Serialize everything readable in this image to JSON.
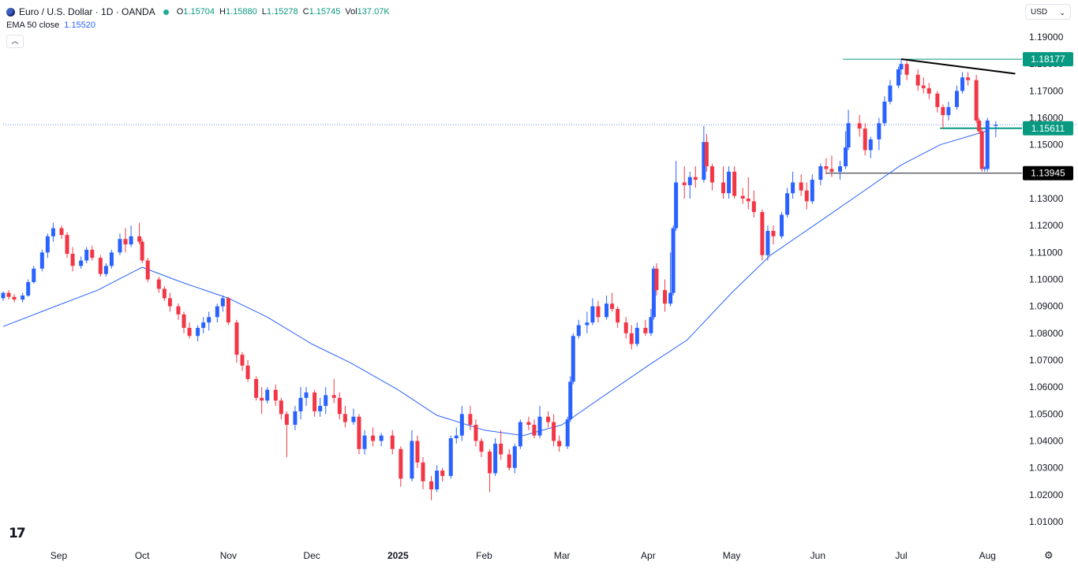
{
  "header": {
    "symbol": "Euro / U.S. Dollar · 1D · OANDA",
    "o_label": "O",
    "o_value": "1.15704",
    "h_label": "H",
    "h_value": "1.15880",
    "l_label": "L",
    "l_value": "1.15278",
    "c_label": "C",
    "c_value": "1.15745",
    "vol_label": "Vol",
    "vol_value": "137.07K",
    "ema_label": "EMA 50 close",
    "ema_value": "1.15520",
    "currency": "USD"
  },
  "colors": {
    "up": "#2962ff",
    "down": "#f23645",
    "ema": "#2962ff",
    "level_green": "#089981",
    "level_black": "#131722",
    "grid_text": "#131722"
  },
  "icons": {
    "symbol_flag": "eur-usd-flag-icon",
    "status": "market-open-dot-icon",
    "collapse": "chevron-up-icon",
    "dropdown": "chevron-down-icon",
    "logo": "tradingview-logo-icon",
    "settings": "gear-icon"
  },
  "chart_data": {
    "type": "candlestick",
    "title": "Euro / U.S. Dollar · 1D · OANDA",
    "y_ticks": [
      "1.19000",
      "1.18000",
      "1.17000",
      "1.16000",
      "1.15000",
      "1.14000",
      "1.13000",
      "1.12000",
      "1.11000",
      "1.10000",
      "1.09000",
      "1.08000",
      "1.07000",
      "1.06000",
      "1.05000",
      "1.04000",
      "1.03000",
      "1.02000",
      "1.01000"
    ],
    "ylim": [
      1.005,
      1.1935
    ],
    "x_labels": [
      "Sep",
      "Oct",
      "Nov",
      "Dec",
      "2025",
      "Feb",
      "Mar",
      "Apr",
      "May",
      "Jun",
      "Jul",
      "Aug"
    ],
    "x_label_positions": [
      "2024-09-01",
      "2024-10-01",
      "2024-11-01",
      "2024-12-01",
      "2025-01-01",
      "2025-02-01",
      "2025-03-01",
      "2025-04-01",
      "2025-05-01",
      "2025-06-01",
      "2025-07-01",
      "2025-08-01"
    ],
    "x_range": [
      "2024-08-12",
      "2025-08-12"
    ],
    "price_labels": [
      {
        "label": "1.18177",
        "value": 1.18177,
        "style": "green"
      },
      {
        "label": "1.15611",
        "value": 1.15611,
        "style": "green"
      },
      {
        "label": "1.13945",
        "value": 1.13945,
        "style": "black"
      }
    ],
    "horizontal_lines": [
      {
        "value": 1.18177,
        "from": "2025-06-10",
        "color": "green"
      },
      {
        "value": 1.15611,
        "from": "2025-07-15",
        "color": "green",
        "width": 2
      },
      {
        "value": 1.13945,
        "from": "2025-06-04",
        "color": "black"
      },
      {
        "value": 1.15745,
        "from": "2024-08-12",
        "color": "blue-dotted"
      }
    ],
    "trendline": {
      "start_date": "2025-07-01",
      "start_value": 1.1818,
      "end_date": "2025-08-11",
      "end_value": 1.1764
    },
    "ema50": [
      [
        "2024-08-12",
        1.0825
      ],
      [
        "2024-09-01",
        1.0905
      ],
      [
        "2024-09-15",
        1.096
      ],
      [
        "2024-10-01",
        1.1045
      ],
      [
        "2024-10-15",
        1.099
      ],
      [
        "2024-11-01",
        1.093
      ],
      [
        "2024-11-15",
        1.086
      ],
      [
        "2024-12-01",
        1.076
      ],
      [
        "2024-12-15",
        1.069
      ],
      [
        "2025-01-01",
        1.059
      ],
      [
        "2025-01-15",
        1.0495
      ],
      [
        "2025-02-01",
        1.044
      ],
      [
        "2025-02-15",
        1.042
      ],
      [
        "2025-03-01",
        1.046
      ],
      [
        "2025-03-15",
        1.056
      ],
      [
        "2025-04-01",
        1.068
      ],
      [
        "2025-04-15",
        1.0775
      ],
      [
        "2025-05-01",
        1.095
      ],
      [
        "2025-05-15",
        1.109
      ],
      [
        "2025-06-01",
        1.121
      ],
      [
        "2025-06-15",
        1.131
      ],
      [
        "2025-07-01",
        1.1425
      ],
      [
        "2025-07-15",
        1.15
      ],
      [
        "2025-08-01",
        1.1552
      ]
    ],
    "candles": [
      [
        "2024-08-12",
        1.093,
        1.0955,
        1.092,
        1.095
      ],
      [
        "2024-08-14",
        1.095,
        1.096,
        1.0925,
        1.0935
      ],
      [
        "2024-08-16",
        1.0935,
        1.0945,
        1.0915,
        1.0925
      ],
      [
        "2024-08-19",
        1.0925,
        1.095,
        1.0915,
        1.094
      ],
      [
        "2024-08-21",
        1.094,
        1.1,
        1.0935,
        1.099
      ],
      [
        "2024-08-23",
        1.099,
        1.105,
        1.0985,
        1.104
      ],
      [
        "2024-08-26",
        1.104,
        1.111,
        1.103,
        1.11
      ],
      [
        "2024-08-28",
        1.11,
        1.117,
        1.108,
        1.116
      ],
      [
        "2024-08-30",
        1.116,
        1.121,
        1.114,
        1.119
      ],
      [
        "2024-09-02",
        1.119,
        1.12,
        1.115,
        1.1165
      ],
      [
        "2024-09-04",
        1.1165,
        1.1175,
        1.108,
        1.1095
      ],
      [
        "2024-09-06",
        1.1095,
        1.112,
        1.103,
        1.105
      ],
      [
        "2024-09-09",
        1.105,
        1.1085,
        1.104,
        1.107
      ],
      [
        "2024-09-11",
        1.107,
        1.112,
        1.106,
        1.111
      ],
      [
        "2024-09-13",
        1.111,
        1.1125,
        1.107,
        1.108
      ],
      [
        "2024-09-16",
        1.108,
        1.109,
        1.101,
        1.102
      ],
      [
        "2024-09-18",
        1.102,
        1.106,
        1.101,
        1.105
      ],
      [
        "2024-09-20",
        1.105,
        1.111,
        1.104,
        1.11
      ],
      [
        "2024-09-23",
        1.11,
        1.117,
        1.109,
        1.115
      ],
      [
        "2024-09-25",
        1.115,
        1.119,
        1.11,
        1.113
      ],
      [
        "2024-09-27",
        1.113,
        1.12,
        1.112,
        1.116
      ],
      [
        "2024-09-30",
        1.116,
        1.121,
        1.113,
        1.114
      ],
      [
        "2024-10-01",
        1.114,
        1.115,
        1.106,
        1.107
      ],
      [
        "2024-10-03",
        1.107,
        1.108,
        1.099,
        1.1
      ],
      [
        "2024-10-07",
        1.1,
        1.101,
        1.095,
        1.0965
      ],
      [
        "2024-10-09",
        1.0965,
        1.0975,
        1.092,
        1.093
      ],
      [
        "2024-10-11",
        1.093,
        1.095,
        1.088,
        1.09
      ],
      [
        "2024-10-14",
        1.09,
        1.091,
        1.085,
        1.087
      ],
      [
        "2024-10-16",
        1.087,
        1.088,
        1.08,
        1.082
      ],
      [
        "2024-10-18",
        1.082,
        1.084,
        1.078,
        1.079
      ],
      [
        "2024-10-21",
        1.079,
        1.083,
        1.077,
        1.082
      ],
      [
        "2024-10-23",
        1.082,
        1.086,
        1.08,
        1.084
      ],
      [
        "2024-10-25",
        1.084,
        1.088,
        1.081,
        1.086
      ],
      [
        "2024-10-28",
        1.086,
        1.091,
        1.084,
        1.09
      ],
      [
        "2024-10-30",
        1.09,
        1.094,
        1.088,
        1.093
      ],
      [
        "2024-11-01",
        1.093,
        1.0935,
        1.083,
        1.084
      ],
      [
        "2024-11-04",
        1.084,
        1.085,
        1.069,
        1.072
      ],
      [
        "2024-11-06",
        1.072,
        1.073,
        1.066,
        1.068
      ],
      [
        "2024-11-08",
        1.068,
        1.07,
        1.062,
        1.063
      ],
      [
        "2024-11-11",
        1.063,
        1.064,
        1.055,
        1.056
      ],
      [
        "2024-11-13",
        1.056,
        1.06,
        1.05,
        1.055
      ],
      [
        "2024-11-15",
        1.055,
        1.06,
        1.054,
        1.059
      ],
      [
        "2024-11-18",
        1.059,
        1.061,
        1.053,
        1.055
      ],
      [
        "2024-11-20",
        1.055,
        1.056,
        1.048,
        1.05
      ],
      [
        "2024-11-22",
        1.05,
        1.051,
        1.034,
        1.046
      ],
      [
        "2024-11-25",
        1.046,
        1.053,
        1.044,
        1.051
      ],
      [
        "2024-11-27",
        1.051,
        1.06,
        1.048,
        1.056
      ],
      [
        "2024-11-29",
        1.056,
        1.06,
        1.053,
        1.058
      ],
      [
        "2024-12-02",
        1.058,
        1.059,
        1.049,
        1.051
      ],
      [
        "2024-12-04",
        1.051,
        1.056,
        1.049,
        1.053
      ],
      [
        "2024-12-06",
        1.053,
        1.06,
        1.05,
        1.057
      ],
      [
        "2024-12-09",
        1.057,
        1.063,
        1.054,
        1.056
      ],
      [
        "2024-12-11",
        1.056,
        1.058,
        1.048,
        1.05
      ],
      [
        "2024-12-13",
        1.05,
        1.053,
        1.045,
        1.047
      ],
      [
        "2024-12-16",
        1.047,
        1.052,
        1.046,
        1.049
      ],
      [
        "2024-12-18",
        1.049,
        1.05,
        1.035,
        1.037
      ],
      [
        "2024-12-20",
        1.037,
        1.044,
        1.035,
        1.042
      ],
      [
        "2024-12-23",
        1.042,
        1.045,
        1.038,
        1.04
      ],
      [
        "2024-12-26",
        1.04,
        1.043,
        1.038,
        1.042
      ],
      [
        "2024-12-30",
        1.042,
        1.044,
        1.035,
        1.037
      ],
      [
        "2025-01-02",
        1.037,
        1.038,
        1.023,
        1.026
      ],
      [
        "2025-01-06",
        1.026,
        1.044,
        1.025,
        1.04
      ],
      [
        "2025-01-08",
        1.04,
        1.042,
        1.03,
        1.032
      ],
      [
        "2025-01-10",
        1.032,
        1.034,
        1.022,
        1.025
      ],
      [
        "2025-01-13",
        1.025,
        1.027,
        1.018,
        1.022
      ],
      [
        "2025-01-15",
        1.022,
        1.031,
        1.021,
        1.029
      ],
      [
        "2025-01-17",
        1.029,
        1.03,
        1.025,
        1.027
      ],
      [
        "2025-01-20",
        1.027,
        1.042,
        1.026,
        1.041
      ],
      [
        "2025-01-22",
        1.041,
        1.045,
        1.039,
        1.042
      ],
      [
        "2025-01-24",
        1.042,
        1.053,
        1.04,
        1.05
      ],
      [
        "2025-01-27",
        1.05,
        1.053,
        1.044,
        1.046
      ],
      [
        "2025-01-29",
        1.046,
        1.048,
        1.038,
        1.04
      ],
      [
        "2025-01-31",
        1.04,
        1.041,
        1.034,
        1.036
      ],
      [
        "2025-02-03",
        1.036,
        1.037,
        1.021,
        1.028
      ],
      [
        "2025-02-05",
        1.028,
        1.041,
        1.027,
        1.039
      ],
      [
        "2025-02-07",
        1.039,
        1.044,
        1.033,
        1.035
      ],
      [
        "2025-02-10",
        1.035,
        1.037,
        1.029,
        1.03
      ],
      [
        "2025-02-12",
        1.03,
        1.039,
        1.028,
        1.038
      ],
      [
        "2025-02-14",
        1.038,
        1.048,
        1.037,
        1.047
      ],
      [
        "2025-02-17",
        1.047,
        1.049,
        1.044,
        1.046
      ],
      [
        "2025-02-19",
        1.046,
        1.048,
        1.041,
        1.042
      ],
      [
        "2025-02-21",
        1.042,
        1.053,
        1.041,
        1.049
      ],
      [
        "2025-02-24",
        1.049,
        1.051,
        1.045,
        1.047
      ],
      [
        "2025-02-26",
        1.047,
        1.05,
        1.038,
        1.04
      ],
      [
        "2025-02-28",
        1.04,
        1.042,
        1.036,
        1.038
      ],
      [
        "2025-03-03",
        1.038,
        1.049,
        1.037,
        1.048
      ],
      [
        "2025-03-04",
        1.048,
        1.064,
        1.047,
        1.062
      ],
      [
        "2025-03-05",
        1.062,
        1.08,
        1.061,
        1.079
      ],
      [
        "2025-03-07",
        1.079,
        1.085,
        1.078,
        1.083
      ],
      [
        "2025-03-10",
        1.083,
        1.088,
        1.08,
        1.084
      ],
      [
        "2025-03-12",
        1.084,
        1.093,
        1.083,
        1.09
      ],
      [
        "2025-03-14",
        1.09,
        1.092,
        1.084,
        1.086
      ],
      [
        "2025-03-17",
        1.086,
        1.094,
        1.085,
        1.091
      ],
      [
        "2025-03-19",
        1.091,
        1.095,
        1.088,
        1.089
      ],
      [
        "2025-03-21",
        1.089,
        1.09,
        1.082,
        1.084
      ],
      [
        "2025-03-24",
        1.084,
        1.086,
        1.078,
        1.08
      ],
      [
        "2025-03-26",
        1.08,
        1.083,
        1.074,
        1.076
      ],
      [
        "2025-03-28",
        1.076,
        1.084,
        1.075,
        1.082
      ],
      [
        "2025-03-31",
        1.082,
        1.085,
        1.079,
        1.08
      ],
      [
        "2025-04-02",
        1.08,
        1.089,
        1.079,
        1.086
      ],
      [
        "2025-04-03",
        1.086,
        1.105,
        1.085,
        1.104
      ],
      [
        "2025-04-04",
        1.104,
        1.106,
        1.094,
        1.096
      ],
      [
        "2025-04-07",
        1.096,
        1.1,
        1.088,
        1.091
      ],
      [
        "2025-04-09",
        1.091,
        1.11,
        1.09,
        1.095
      ],
      [
        "2025-04-10",
        1.095,
        1.12,
        1.094,
        1.119
      ],
      [
        "2025-04-11",
        1.119,
        1.144,
        1.118,
        1.136
      ],
      [
        "2025-04-14",
        1.136,
        1.142,
        1.13,
        1.135
      ],
      [
        "2025-04-16",
        1.135,
        1.14,
        1.13,
        1.138
      ],
      [
        "2025-04-18",
        1.138,
        1.142,
        1.134,
        1.137
      ],
      [
        "2025-04-21",
        1.137,
        1.157,
        1.136,
        1.151
      ],
      [
        "2025-04-22",
        1.151,
        1.154,
        1.14,
        1.142
      ],
      [
        "2025-04-24",
        1.142,
        1.143,
        1.133,
        1.136
      ],
      [
        "2025-04-28",
        1.136,
        1.142,
        1.13,
        1.132
      ],
      [
        "2025-04-30",
        1.132,
        1.142,
        1.13,
        1.14
      ],
      [
        "2025-05-02",
        1.14,
        1.142,
        1.13,
        1.131
      ],
      [
        "2025-05-05",
        1.131,
        1.134,
        1.128,
        1.13
      ],
      [
        "2025-05-07",
        1.13,
        1.138,
        1.126,
        1.129
      ],
      [
        "2025-05-09",
        1.129,
        1.133,
        1.123,
        1.125
      ],
      [
        "2025-05-12",
        1.125,
        1.126,
        1.107,
        1.109
      ],
      [
        "2025-05-14",
        1.109,
        1.12,
        1.107,
        1.118
      ],
      [
        "2025-05-16",
        1.118,
        1.12,
        1.113,
        1.116
      ],
      [
        "2025-05-19",
        1.116,
        1.125,
        1.115,
        1.124
      ],
      [
        "2025-05-21",
        1.124,
        1.134,
        1.123,
        1.132
      ],
      [
        "2025-05-23",
        1.132,
        1.14,
        1.13,
        1.136
      ],
      [
        "2025-05-26",
        1.136,
        1.139,
        1.131,
        1.133
      ],
      [
        "2025-05-28",
        1.133,
        1.136,
        1.126,
        1.129
      ],
      [
        "2025-05-30",
        1.129,
        1.139,
        1.128,
        1.137
      ],
      [
        "2025-06-02",
        1.137,
        1.143,
        1.135,
        1.142
      ],
      [
        "2025-06-04",
        1.142,
        1.145,
        1.139,
        1.141
      ],
      [
        "2025-06-06",
        1.141,
        1.146,
        1.138,
        1.14
      ],
      [
        "2025-06-09",
        1.14,
        1.144,
        1.137,
        1.142
      ],
      [
        "2025-06-11",
        1.142,
        1.155,
        1.141,
        1.149
      ],
      [
        "2025-06-12",
        1.149,
        1.163,
        1.148,
        1.158
      ],
      [
        "2025-06-16",
        1.158,
        1.161,
        1.153,
        1.156
      ],
      [
        "2025-06-18",
        1.156,
        1.158,
        1.146,
        1.148
      ],
      [
        "2025-06-20",
        1.148,
        1.153,
        1.145,
        1.152
      ],
      [
        "2025-06-23",
        1.152,
        1.16,
        1.148,
        1.158
      ],
      [
        "2025-06-25",
        1.158,
        1.168,
        1.157,
        1.166
      ],
      [
        "2025-06-27",
        1.166,
        1.174,
        1.165,
        1.172
      ],
      [
        "2025-06-30",
        1.172,
        1.179,
        1.171,
        1.178
      ],
      [
        "2025-07-01",
        1.178,
        1.1818,
        1.176,
        1.18
      ],
      [
        "2025-07-03",
        1.18,
        1.181,
        1.174,
        1.176
      ],
      [
        "2025-07-07",
        1.176,
        1.178,
        1.17,
        1.172
      ],
      [
        "2025-07-09",
        1.172,
        1.175,
        1.169,
        1.171
      ],
      [
        "2025-07-11",
        1.171,
        1.173,
        1.167,
        1.169
      ],
      [
        "2025-07-14",
        1.169,
        1.17,
        1.162,
        1.164
      ],
      [
        "2025-07-16",
        1.164,
        1.165,
        1.156,
        1.161
      ],
      [
        "2025-07-18",
        1.161,
        1.166,
        1.159,
        1.164
      ],
      [
        "2025-07-21",
        1.164,
        1.172,
        1.163,
        1.17
      ],
      [
        "2025-07-23",
        1.17,
        1.177,
        1.169,
        1.175
      ],
      [
        "2025-07-25",
        1.175,
        1.177,
        1.172,
        1.174
      ],
      [
        "2025-07-28",
        1.174,
        1.176,
        1.158,
        1.159
      ],
      [
        "2025-07-29",
        1.159,
        1.16,
        1.154,
        1.155
      ],
      [
        "2025-07-30",
        1.155,
        1.156,
        1.14,
        1.141
      ],
      [
        "2025-07-31",
        1.141,
        1.142,
        1.14,
        1.1415
      ],
      [
        "2025-08-01",
        1.141,
        1.16,
        1.14,
        1.159
      ],
      [
        "2025-08-04",
        1.157,
        1.1588,
        1.1528,
        1.1574
      ]
    ]
  }
}
